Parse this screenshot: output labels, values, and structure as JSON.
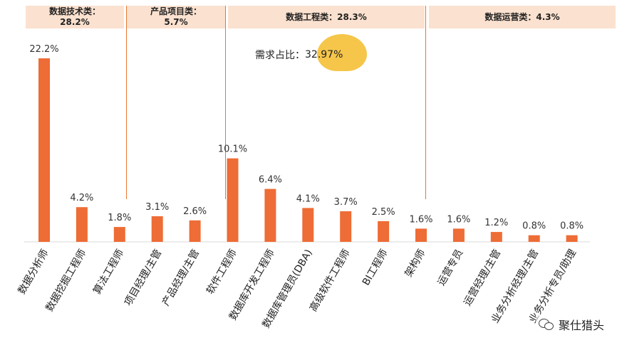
{
  "groups": [
    {
      "label": "数据技术类：\n28.2%"
    },
    {
      "label": "产品项目类：\n5.7%"
    },
    {
      "label": "数据工程类：28.3%"
    },
    {
      "label": "数据运营类：4.3%"
    }
  ],
  "callout": {
    "label": "需求占比：",
    "value": "32.97%"
  },
  "watermark": {
    "text": "聚仕猎头",
    "icon": "wechat-icon"
  },
  "colors": {
    "bar": "#ee6c35",
    "band": "#fbe1cf",
    "divider": "#e8762f",
    "callout": "#f5c64a"
  },
  "chart_data": {
    "type": "bar",
    "categories": [
      "数据分析师",
      "数据挖掘工程师",
      "算法工程师",
      "项目经理/主管",
      "产品经理/主管",
      "软件工程师",
      "数据库开发工程师",
      "数据库管理员(DBA)",
      "高级软件工程师",
      "BI工程师",
      "架构师",
      "运营专员",
      "运营经理/主管",
      "业务分析经理/主管",
      "业务分析专员/助理"
    ],
    "values": [
      22.2,
      4.2,
      1.8,
      3.1,
      2.6,
      10.1,
      6.4,
      4.1,
      3.7,
      2.5,
      1.6,
      1.6,
      1.2,
      0.8,
      0.8
    ],
    "value_labels": [
      "22.2%",
      "4.2%",
      "1.8%",
      "3.1%",
      "2.6%",
      "10.1%",
      "6.4%",
      "4.1%",
      "3.7%",
      "2.5%",
      "1.6%",
      "1.6%",
      "1.2%",
      "0.8%",
      "0.8%"
    ],
    "ylim": [
      0,
      22.2
    ],
    "grid": false,
    "legend": "none"
  }
}
